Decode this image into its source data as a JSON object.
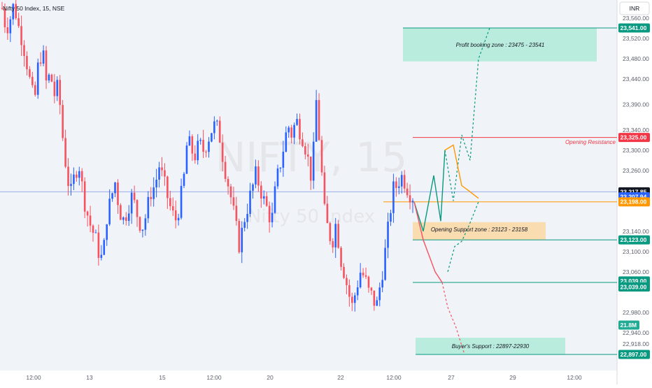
{
  "symbol_header": "Nifty 50 Index, 15, NSE",
  "watermark": {
    "symbol": "NIFTY, 15",
    "subtitle": "Nifty 50 Index"
  },
  "currency_button": "INR",
  "price_axis": {
    "ticks": [
      23560,
      23520,
      23480,
      23440,
      23390,
      23340,
      23300,
      23260,
      23140,
      23100,
      23060,
      22980,
      22940,
      22918
    ],
    "tick_labels": [
      "23,560.00",
      "23,520.00",
      "23,480.00",
      "23,440.00",
      "23,390.00",
      "23,340.00",
      "23,300.00",
      "23,260.00",
      "23,140.00",
      "23,100.00",
      "23,060.00",
      "22,980.00",
      "22,940.00",
      "22,918.00"
    ]
  },
  "price_tags": [
    {
      "text": "23,541.00",
      "price": 23541,
      "color": "#089981"
    },
    {
      "text": "23,325.00",
      "price": 23325,
      "color": "#f23645"
    },
    {
      "text": "23,217.85",
      "price": 23217.85,
      "color": "#131722"
    },
    {
      "text": "23,207.94",
      "price": 23207.94,
      "color": "#2962ff"
    },
    {
      "text": "23,198.00",
      "price": 23198,
      "color": "#ff9800"
    },
    {
      "text": "23,123.00",
      "price": 23123,
      "color": "#089981"
    },
    {
      "text": "23,039.00",
      "price": 23042,
      "color": "#089981"
    },
    {
      "text": "23,039.00",
      "price": 23030,
      "color": "#089981"
    },
    {
      "text": "21.8M",
      "price": 22955,
      "color": "#22ab94"
    },
    {
      "text": "22,897.00",
      "price": 22897,
      "color": "#089981"
    }
  ],
  "time_axis": [
    "12:00",
    "13",
    "15",
    "12:00",
    "20",
    "22",
    "12:00",
    "27",
    "29",
    "12:00"
  ],
  "annotations": {
    "profit_zone": "Profit booking zone :  23475 - 23541",
    "opening_resistance": "Opening Resistance",
    "support_zone": "Opening Support zone :  23123 - 23158",
    "buyers_support": "Buyer's Support :  22897-22930"
  },
  "colors": {
    "up": "#2962ff",
    "down": "#f7525f",
    "zone_green": "#b2ebd8",
    "zone_orange": "#fbd9a8",
    "teal": "#089981",
    "red": "#f23645",
    "orange": "#ff9800"
  },
  "chart_data": {
    "type": "candlestick",
    "title": "Nifty 50 Index, 15, NSE",
    "ylim": [
      22880,
      23575
    ],
    "levels": [
      {
        "name": "Profit booking zone",
        "from": 23475,
        "to": 23541
      },
      {
        "name": "Opening Resistance",
        "value": 23325
      },
      {
        "name": "Opening Support zone",
        "from": 23123,
        "to": 23158
      },
      {
        "name": "Support",
        "value": 23039
      },
      {
        "name": "Buyer's Support",
        "from": 22897,
        "to": 22930
      }
    ],
    "last_price": 23217.85,
    "volume": "21.8M",
    "close_path": [
      23580,
      23540,
      23560,
      23590,
      23545,
      23520,
      23480,
      23430,
      23390,
      23470,
      23500,
      23430,
      23450,
      23410,
      23425,
      23330,
      23260,
      23210,
      23250,
      23280,
      23220,
      23180,
      23150,
      23130,
      23100,
      23080,
      23170,
      23200,
      23240,
      23190,
      23160,
      23180,
      23210,
      23190,
      23160,
      23150,
      23180,
      23220,
      23230,
      23270,
      23240,
      23210,
      23180,
      23160,
      23190,
      23230,
      23320,
      23300,
      23290,
      23310,
      23300,
      23320,
      23340,
      23350,
      23330,
      23280,
      23240,
      23200,
      23150,
      23110,
      23160,
      23190,
      23220,
      23250,
      23230,
      23200,
      23180,
      23160,
      23230,
      23270,
      23310,
      23350,
      23330,
      23360,
      23340,
      23320,
      23280,
      23240,
      23400,
      23300,
      23180,
      23140,
      23120,
      23160,
      23090,
      23060,
      23020,
      22990,
      23030,
      23060,
      23050,
      23020,
      23010,
      22990,
      23040,
      23090,
      23150,
      23220,
      23230,
      23250,
      23240,
      23220,
      23210
    ],
    "projections": [
      {
        "name": "bullish",
        "prices": [
          23198,
          23140,
          23250,
          23160,
          23300,
          23200,
          23330,
          23280,
          23480,
          23541
        ]
      },
      {
        "name": "bearish",
        "prices": [
          23198,
          23123,
          23060,
          23039,
          22990,
          22950,
          22897
        ]
      }
    ]
  }
}
